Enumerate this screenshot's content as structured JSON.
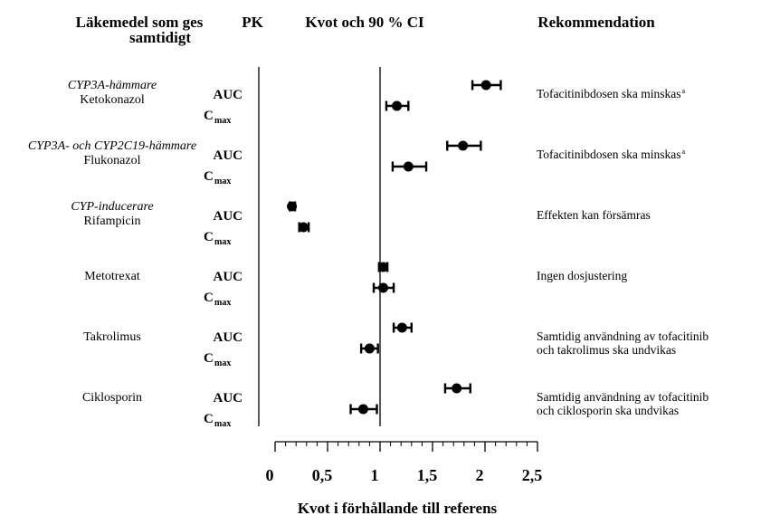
{
  "headers": {
    "drug_col_line1": "Läkemedel som ges",
    "drug_col_line2": "samtidigt",
    "pk_col": "PK",
    "ratio_col": "Kvot och 90 % CI",
    "rec_col": "Rekommendation"
  },
  "chart_data": {
    "type": "forest",
    "title": "Kvot och 90 % CI",
    "xlabel": "Kvot i förhållande till referens",
    "ylabel": "",
    "xlim": [
      0,
      2.5
    ],
    "reference_line": 1,
    "x_ticks": [
      0,
      0.5,
      1,
      1.5,
      2,
      2.5
    ],
    "x_tick_labels": [
      "0",
      "0,5",
      "1",
      "1,5",
      "2",
      "2,5"
    ],
    "cmax_main": "C",
    "cmax_sub": "max",
    "groups": [
      {
        "drug_class": "CYP3A-hämmare",
        "drug": "Ketokonazol",
        "recommendation_lines": [
          "Tofacitinibdosen ska minskas"
        ],
        "recommendation_sup": "a",
        "rows": [
          {
            "param": "AUC",
            "estimate": 2.01,
            "ci": [
              1.88,
              2.15
            ]
          },
          {
            "param": "Cmax",
            "estimate": 1.16,
            "ci": [
              1.06,
              1.27
            ]
          }
        ]
      },
      {
        "drug_class": "CYP3A- och CYP2C19-hämmare",
        "drug": "Flukonazol",
        "recommendation_lines": [
          "Tofacitinibdosen ska minskas"
        ],
        "recommendation_sup": "a",
        "rows": [
          {
            "param": "AUC",
            "estimate": 1.79,
            "ci": [
              1.64,
              1.96
            ]
          },
          {
            "param": "Cmax",
            "estimate": 1.27,
            "ci": [
              1.12,
              1.44
            ]
          }
        ]
      },
      {
        "drug_class": "CYP-inducerare",
        "drug": "Rifampicin",
        "recommendation_lines": [
          "Effekten kan försämras"
        ],
        "recommendation_sup": "",
        "rows": [
          {
            "param": "AUC",
            "estimate": 0.16,
            "ci": [
              0.14,
              0.19
            ]
          },
          {
            "param": "Cmax",
            "estimate": 0.27,
            "ci": [
              0.23,
              0.32
            ]
          }
        ]
      },
      {
        "drug_class": "",
        "drug": "Metotrexat",
        "recommendation_lines": [
          "Ingen dosjustering"
        ],
        "recommendation_sup": "",
        "rows": [
          {
            "param": "AUC",
            "estimate": 1.03,
            "ci": [
              0.99,
              1.07
            ]
          },
          {
            "param": "Cmax",
            "estimate": 1.03,
            "ci": [
              0.94,
              1.13
            ]
          }
        ]
      },
      {
        "drug_class": "",
        "drug": "Takrolimus",
        "recommendation_lines": [
          "Samtidig användning av tofacitinib",
          "och takrolimus ska undvikas"
        ],
        "recommendation_sup": "",
        "rows": [
          {
            "param": "AUC",
            "estimate": 1.21,
            "ci": [
              1.13,
              1.3
            ]
          },
          {
            "param": "Cmax",
            "estimate": 0.9,
            "ci": [
              0.82,
              0.98
            ]
          }
        ]
      },
      {
        "drug_class": "",
        "drug": "Ciklosporin",
        "recommendation_lines": [
          "Samtidig användning av tofacitinib",
          "och ciklosporin ska undvikas"
        ],
        "recommendation_sup": "",
        "rows": [
          {
            "param": "AUC",
            "estimate": 1.73,
            "ci": [
              1.62,
              1.86
            ]
          },
          {
            "param": "Cmax",
            "estimate": 0.84,
            "ci": [
              0.72,
              0.97
            ]
          }
        ]
      }
    ]
  }
}
